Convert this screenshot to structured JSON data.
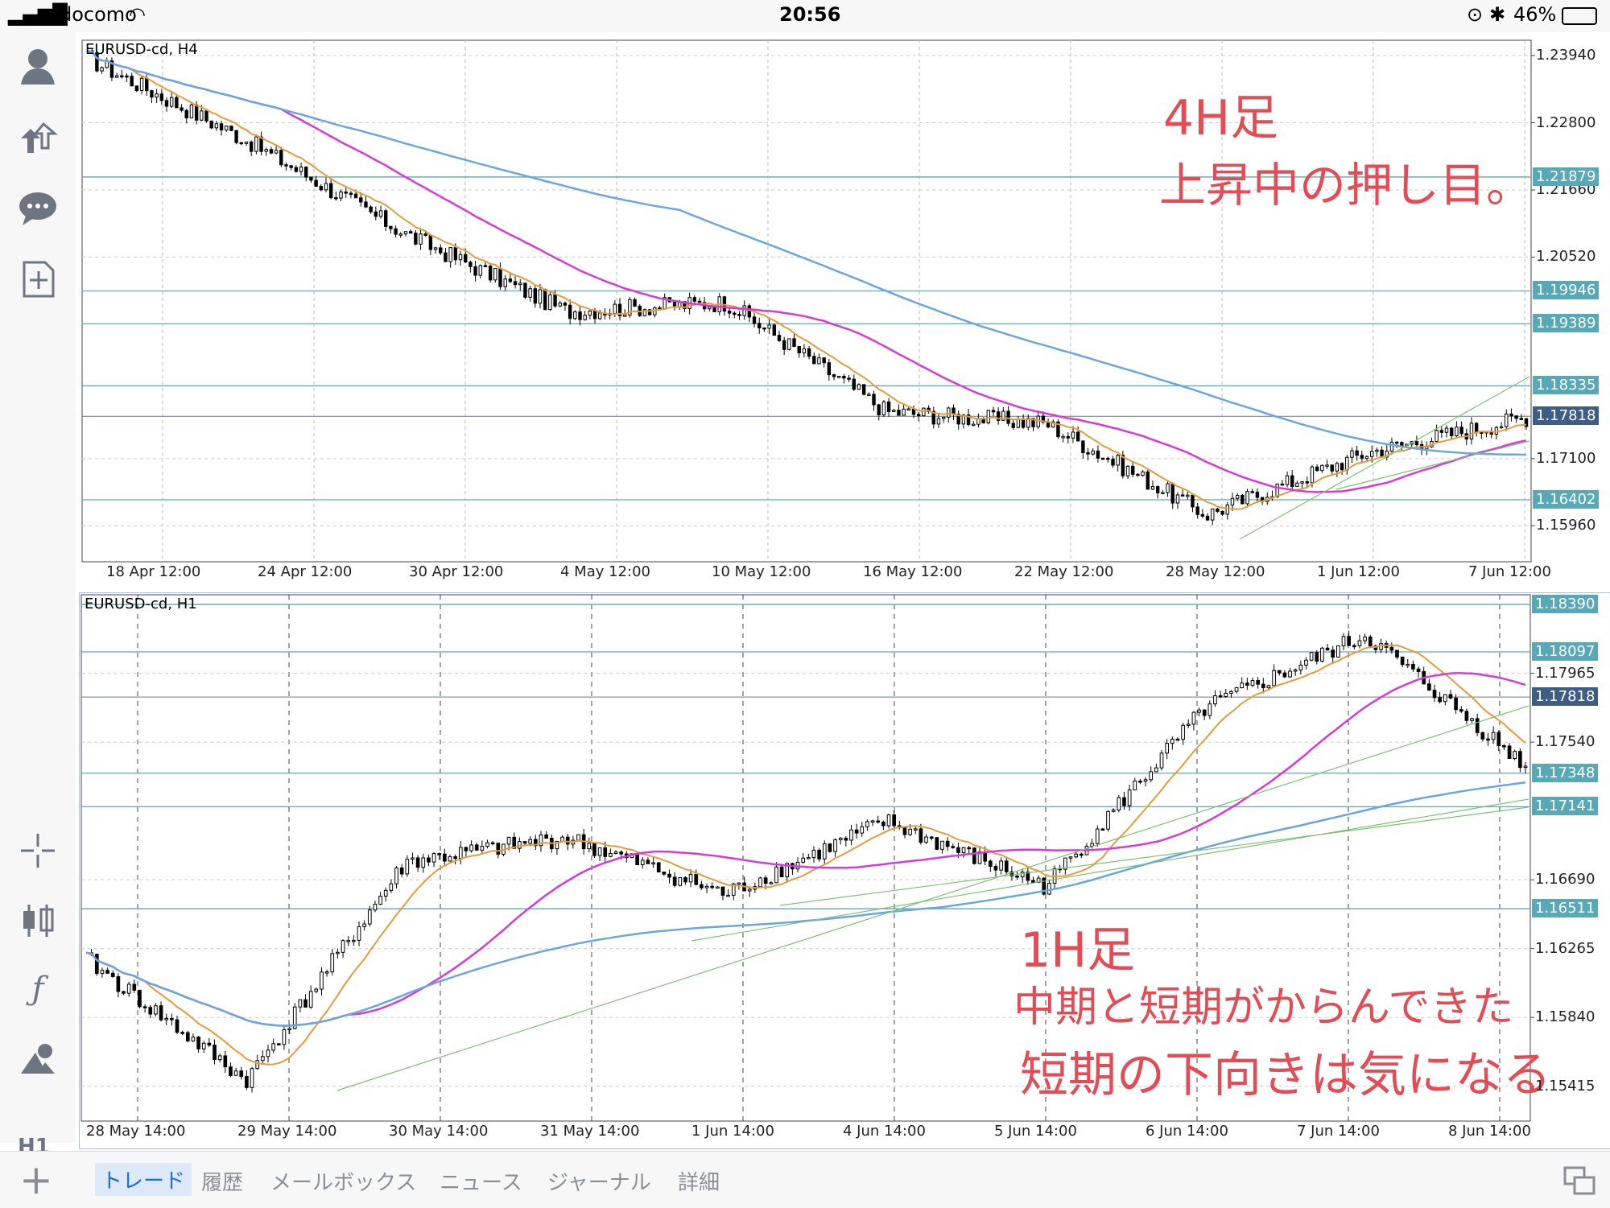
{
  "status_bar": {
    "carrier": "docomo",
    "time": "20:56",
    "battery": "46%"
  },
  "sidebar": {
    "timeframe": "H1"
  },
  "charts": [
    {
      "title": "EURUSD-cd, H4",
      "y_ticks": [
        "1.23940",
        "1.22800",
        "1.21660",
        "1.20520",
        "1.17100",
        "1.15960"
      ],
      "h_lines": [
        "1.21879",
        "1.19946",
        "1.19389",
        "1.18335",
        "1.16402"
      ],
      "current_price": "1.17818",
      "x_ticks": [
        "18 Apr 12:00",
        "24 Apr 12:00",
        "30 Apr 12:00",
        "4 May 12:00",
        "10 May 12:00",
        "16 May 12:00",
        "22 May 12:00",
        "28 May 12:00",
        "1 Jun 12:00",
        "7 Jun 12:00"
      ],
      "annotation": [
        "4H足",
        "上昇中の押し目。"
      ]
    },
    {
      "title": "EURUSD-cd, H1",
      "y_ticks": [
        "1.17965",
        "1.17540",
        "1.16690",
        "1.16265",
        "1.15840",
        "1.15415"
      ],
      "h_lines": [
        "1.18390",
        "1.18097",
        "1.17348",
        "1.17141",
        "1.16511"
      ],
      "current_price": "1.17818",
      "x_ticks": [
        "28 May 14:00",
        "29 May 14:00",
        "30 May 14:00",
        "31 May 14:00",
        "1 Jun 14:00",
        "4 Jun 14:00",
        "5 Jun 14:00",
        "6 Jun 14:00",
        "7 Jun 14:00",
        "8 Jun 14:00"
      ],
      "annotation": [
        "1H足",
        "中期と短期がからんできた",
        "短期の下向きは気になる"
      ]
    }
  ],
  "bottom_tabs": [
    "トレード",
    "履歴",
    "メールボックス",
    "ニュース",
    "ジャーナル",
    "詳細"
  ],
  "colors": {
    "accent": "#1a6fd6",
    "hline": "#57a9b8",
    "current": "#3d5d86",
    "ma_short": "#e89a3c",
    "ma_mid": "#d63ad8",
    "ma_long": "#6aa6e0",
    "annotation": "#e34b55"
  },
  "chart_data": [
    {
      "type": "line",
      "title": "EURUSD-cd, H4",
      "x": [
        "18 Apr 12:00",
        "24 Apr 12:00",
        "30 Apr 12:00",
        "4 May 12:00",
        "10 May 12:00",
        "16 May 12:00",
        "22 May 12:00",
        "28 May 12:00",
        "1 Jun 12:00",
        "7 Jun 12:00"
      ],
      "series": [
        {
          "values": [
            1.239,
            1.225,
            1.209,
            1.196,
            1.1975,
            1.179,
            1.177,
            1.1615,
            1.172,
            1.178
          ]
        }
      ],
      "ylim": [
        1.1535,
        1.242
      ],
      "grid": true
    },
    {
      "type": "line",
      "title": "EURUSD-cd, H1",
      "x": [
        "28 May 14:00",
        "29 May 14:00",
        "30 May 14:00",
        "31 May 14:00",
        "1 Jun 14:00",
        "4 Jun 14:00",
        "5 Jun 14:00",
        "6 Jun 14:00",
        "7 Jun 14:00",
        "8 Jun 14:00"
      ],
      "series": [
        {
          "values": [
            1.162,
            1.1545,
            1.168,
            1.1695,
            1.166,
            1.1705,
            1.1665,
            1.1775,
            1.182,
            1.174
          ]
        }
      ],
      "ylim": [
        1.152,
        1.1845
      ],
      "grid": true
    }
  ]
}
